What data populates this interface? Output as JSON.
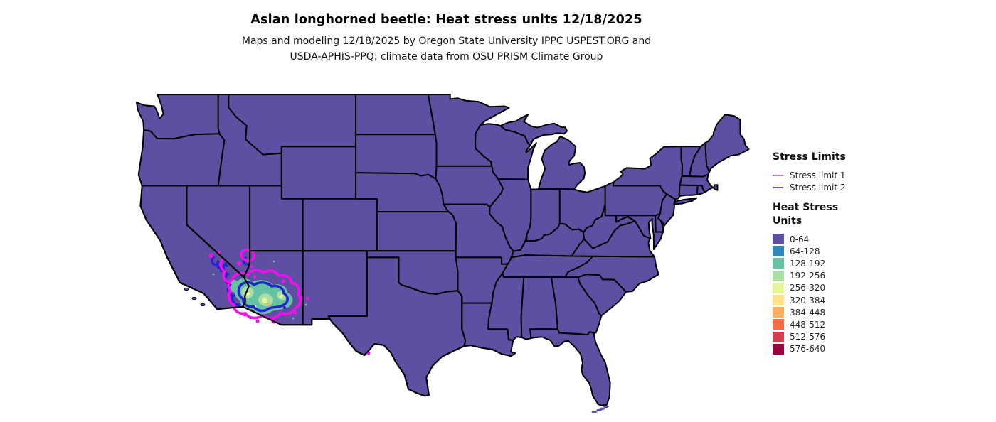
{
  "title": "Asian longhorned beetle: Heat stress units 12/18/2025",
  "subtitle": [
    "Maps and modeling 12/18/2025 by Oregon State University IPPC USPEST.ORG and",
    "USDA-APHIS-PPQ; climate data from OSU PRISM Climate Group"
  ],
  "legend_stress_limits": {
    "title": "Stress Limits",
    "items": [
      {
        "label": "Stress limit 1",
        "color": "#f75bef"
      },
      {
        "label": "Stress limit 2",
        "color": "#5f5de2"
      }
    ]
  },
  "legend_heat_stress": {
    "title_lines": [
      "Heat Stress",
      "Units"
    ],
    "bins": [
      {
        "label": "0-64",
        "color": "#5e4fa2"
      },
      {
        "label": "64-128",
        "color": "#3288bd"
      },
      {
        "label": "128-192",
        "color": "#66c2a5"
      },
      {
        "label": "192-256",
        "color": "#abdda4"
      },
      {
        "label": "256-320",
        "color": "#e6f598"
      },
      {
        "label": "320-384",
        "color": "#fee08b"
      },
      {
        "label": "384-448",
        "color": "#fdae61"
      },
      {
        "label": "448-512",
        "color": "#f46d43"
      },
      {
        "label": "512-576",
        "color": "#d53e4f"
      },
      {
        "label": "576-640",
        "color": "#9e0142"
      }
    ]
  },
  "map": {
    "background": "#ffffff",
    "base_fill": "#5e4fa2",
    "border_color": "#000000",
    "stress_limit1_color": "#fa0cf2",
    "stress_limit2_color": "#2522cf"
  }
}
